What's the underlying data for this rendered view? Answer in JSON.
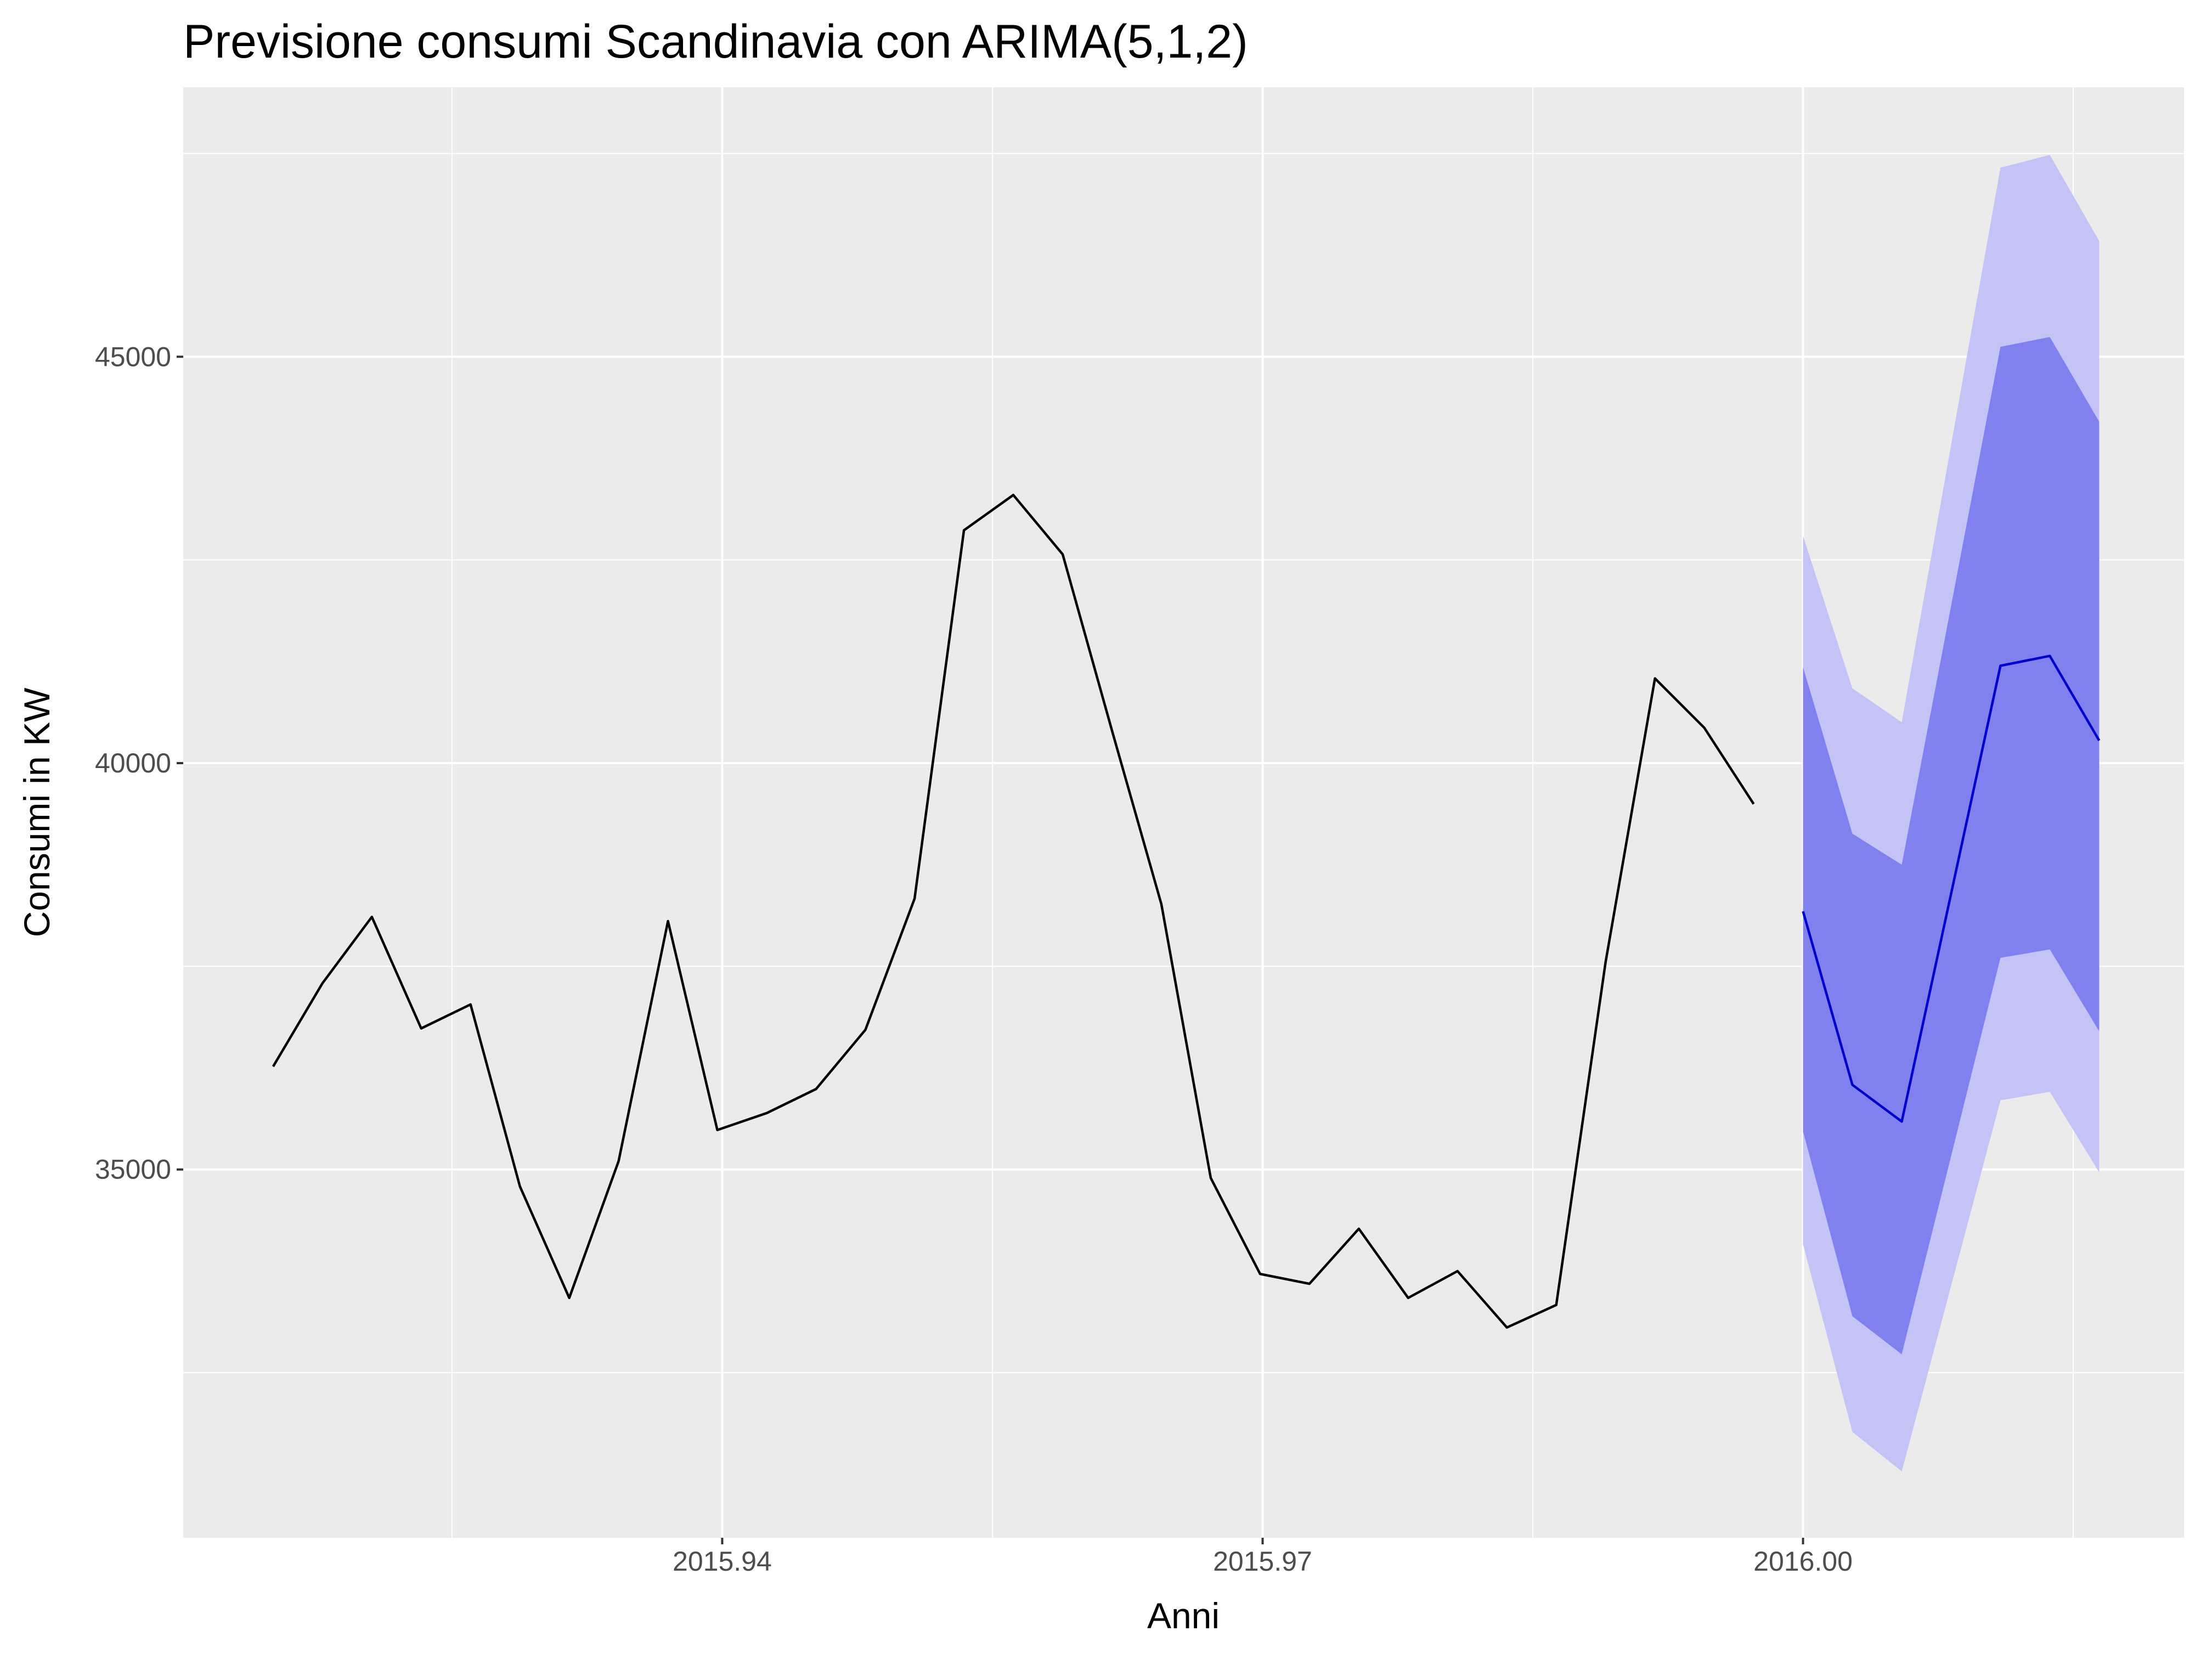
{
  "chart_data": {
    "type": "line",
    "title": "Previsione consumi Scandinavia con ARIMA(5,1,2)",
    "x_label": "Anni",
    "y_label": "Consumi in KW",
    "xlim": [
      2015.91008,
      2016.02115
    ],
    "ylim": [
      30469,
      48316
    ],
    "xticks": [
      2015.94,
      2015.97,
      {
        "value": 2016,
        "label": "2016.00"
      }
    ],
    "yticks": [
      35000,
      40000,
      45000
    ],
    "x_minor_ticks": [
      2015.925,
      2015.955,
      2015.985,
      2016.015
    ],
    "y_minor_ticks": [
      32500,
      37500,
      42500,
      47500
    ],
    "grid": true,
    "background": "#ebebeb",
    "series": [
      {
        "color": "#000000",
        "x": [
          2015.91507,
          2015.91781,
          2015.92055,
          2015.92329,
          2015.92603,
          2015.92877,
          2015.93151,
          2015.93425,
          2015.93699,
          2015.93973,
          2015.94247,
          2015.94521,
          2015.94795,
          2015.95068,
          2015.95342,
          2015.95616,
          2015.9589,
          2015.96164,
          2015.96438,
          2015.96712,
          2015.96986,
          2015.9726,
          2015.97534,
          2015.97808,
          2015.98082,
          2015.98356,
          2015.9863,
          2015.98904,
          2015.99178,
          2015.99452,
          2015.99726
        ],
        "values": [
          36267,
          37292,
          38108,
          36736,
          37031,
          34792,
          33420,
          35104,
          38056,
          35486,
          35694,
          35990,
          36719,
          38333,
          42865,
          43299,
          42569,
          40399,
          38264,
          34896,
          33715,
          33594,
          34271,
          33420,
          33750,
          33056,
          33333,
          37552,
          41042,
          40434,
          39497
        ]
      },
      {
        "color": "#0000cc",
        "x": [
          2016,
          2016.00274,
          2016.00548,
          2016.01096,
          2016.0137,
          2016.01644
        ],
        "values": [
          38177,
          36042,
          35590,
          41198,
          41319,
          40278
        ]
      }
    ],
    "intervals": [
      {
        "color": "#c3c3f5",
        "lower": [
          34080,
          31771,
          31285,
          35851,
          35955,
          34965
        ],
        "upper": [
          42795,
          40920,
          40503,
          47326,
          47483,
          46424
        ]
      },
      {
        "color": "#8080ef",
        "lower": [
          35469,
          33194,
          32726,
          37604,
          37708,
          36701
        ],
        "upper": [
          41181,
          39132,
          38750,
          45122,
          45243,
          44201
        ]
      }
    ]
  }
}
